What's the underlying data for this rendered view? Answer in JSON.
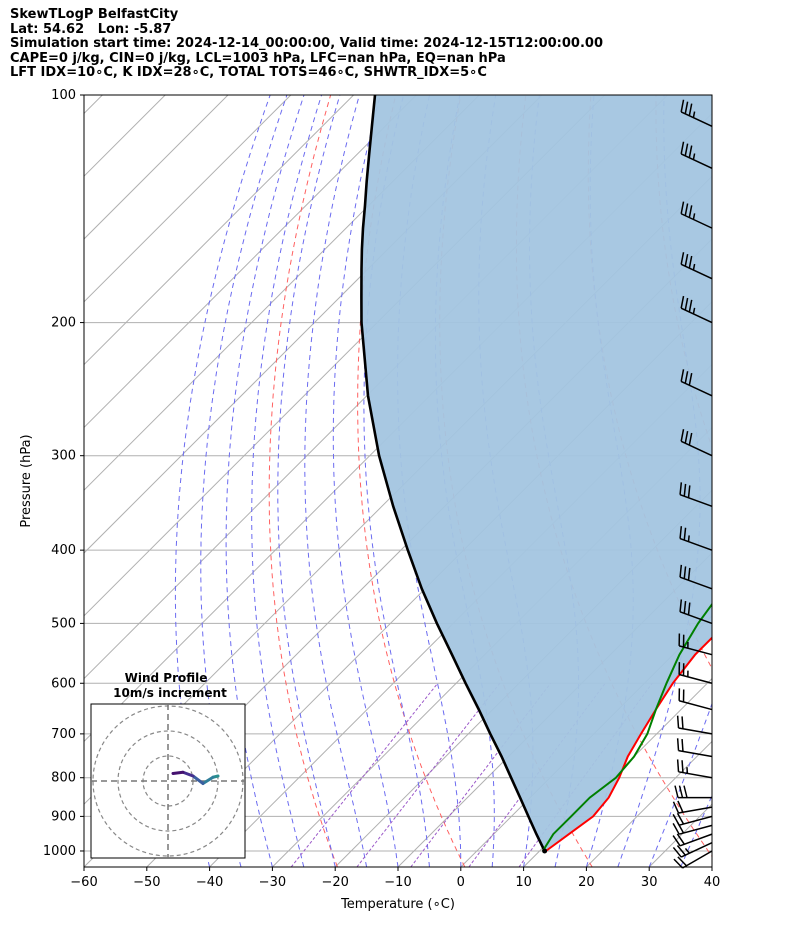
{
  "header": {
    "line1": "SkewTLogP BelfastCity",
    "line2": "Lat: 54.62   Lon: -5.87",
    "line3": "Simulation start time: 2024-12-14_00:00:00, Valid time: 2024-12-15T12:00:00.00",
    "line4": "CAPE=0 j/kg, CIN=0 j/kg, LCL=1003 hPa, LFC=nan hPa, EQ=nan hPa",
    "line5": "LFT IDX=10∘C, K IDX=28∘C, TOTAL TOTS=46∘C, SHWTR_IDX=5∘C"
  },
  "hodograph": {
    "title": "Wind Profile",
    "subtitle": "10m/s increment"
  },
  "chart_data": {
    "type": "line",
    "xlabel": "Temperature (∘C)",
    "ylabel": "Pressure (hPa)",
    "xlim": [
      -60,
      40
    ],
    "ylim": [
      1050,
      100
    ],
    "y_scale": "log",
    "xticks": [
      -60,
      -50,
      -40,
      -30,
      -20,
      -10,
      0,
      10,
      20,
      30,
      40
    ],
    "yticks": [
      1000,
      900,
      800,
      700,
      600,
      500,
      400,
      300,
      200,
      100
    ],
    "grid": true,
    "colors": {
      "temperature": "#ff0000",
      "dewpoint": "#008000",
      "parcel": "#000000",
      "cape_fill": "#a3c5e0",
      "dry_adiabats": "#ff6060",
      "moist_adiabats": "#6b6bf0",
      "mixing_ratio": "#9b59c9",
      "grid": "#b0b0b0"
    },
    "series": [
      {
        "role": "temperature",
        "pressure": [
          1000,
          950,
          900,
          850,
          800,
          750,
          700,
          650,
          600,
          550,
          500,
          450,
          400,
          350,
          300,
          250,
          200,
          185,
          170,
          160,
          150,
          140,
          130,
          120,
          110,
          100
        ],
        "values": [
          11,
          12,
          13,
          12.5,
          11,
          9,
          7.5,
          6,
          4.5,
          3.5,
          3.5,
          2.5,
          0,
          -3,
          -6.5,
          -11,
          -17,
          -21,
          -21,
          -18,
          -15,
          -12.5,
          -8.5,
          -3,
          1,
          2.5
        ]
      },
      {
        "role": "dewpoint",
        "pressure": [
          1000,
          950,
          900,
          850,
          800,
          750,
          700,
          650,
          600,
          550,
          500,
          450,
          400,
          350,
          300,
          250,
          200,
          185,
          170,
          160,
          150,
          140,
          130,
          120,
          110,
          100
        ],
        "values": [
          10.5,
          9.5,
          9.5,
          9.5,
          10.5,
          10,
          8.5,
          6,
          3.5,
          1,
          -1,
          -2.5,
          -4.5,
          -8,
          -12.5,
          -17,
          -23,
          -25.5,
          -23.5,
          -22,
          -18.5,
          -16.5,
          -15,
          -14,
          -11,
          -9.5
        ]
      },
      {
        "role": "parcel",
        "pressure": [
          1000,
          950,
          900,
          850,
          800,
          750,
          700,
          650,
          600,
          550,
          500,
          450,
          400,
          350,
          300,
          250,
          200,
          185,
          170,
          160,
          150,
          140,
          130,
          120,
          110,
          100
        ],
        "values": [
          10.8,
          6.8,
          2.7,
          -1.6,
          -6.2,
          -11.1,
          -16.5,
          -22.2,
          -28.5,
          -35.2,
          -42.6,
          -50.5,
          -58.9,
          -68.2,
          -78.5,
          -89.8,
          -102.5,
          -106.6,
          -111.0,
          -114.1,
          -117.3,
          -120.6,
          -124.2,
          -128.0,
          -132.1,
          -136.6
        ]
      }
    ],
    "wind_barbs": {
      "pressure": [
        1000,
        975,
        950,
        925,
        900,
        875,
        850,
        800,
        750,
        700,
        650,
        600,
        550,
        500,
        450,
        400,
        350,
        300,
        250,
        200,
        175,
        150,
        125,
        110
      ],
      "speed_kt": [
        20,
        25,
        20,
        20,
        20,
        20,
        30,
        25,
        20,
        20,
        20,
        25,
        25,
        30,
        30,
        25,
        30,
        30,
        30,
        35,
        35,
        35,
        35,
        35
      ],
      "direction_deg": [
        240,
        245,
        250,
        255,
        255,
        260,
        270,
        280,
        280,
        280,
        285,
        285,
        285,
        290,
        290,
        290,
        290,
        295,
        295,
        295,
        295,
        295,
        295,
        295
      ]
    },
    "hodograph_data": {
      "rings": [
        10,
        20,
        30
      ],
      "u": [
        20,
        18,
        14,
        10,
        6,
        2
      ],
      "v": [
        2,
        1.5,
        -1,
        2,
        3.5,
        3
      ]
    }
  }
}
